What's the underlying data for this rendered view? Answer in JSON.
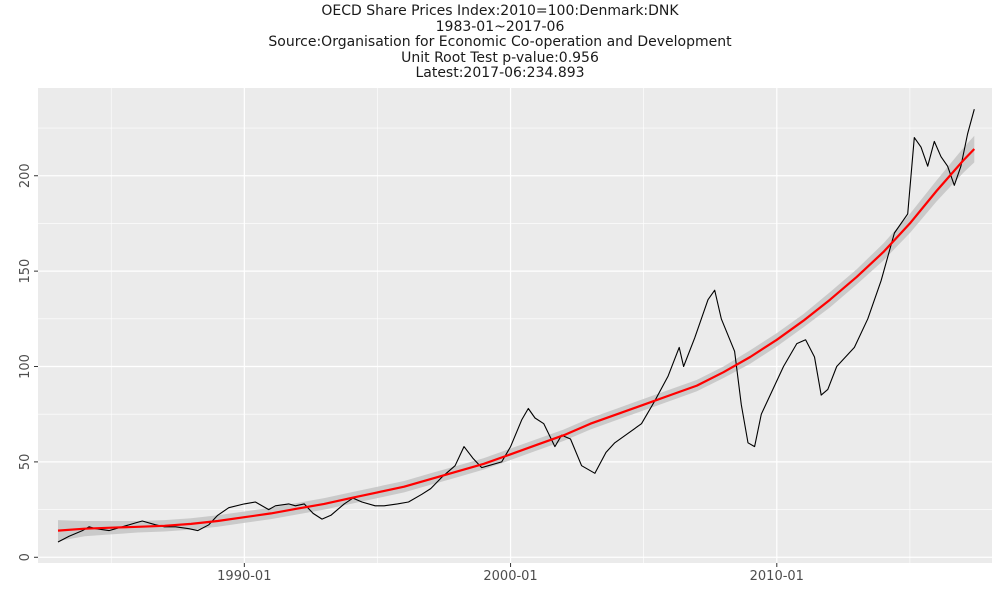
{
  "header": {
    "title": "OECD Share Prices Index:2010=100:Denmark:DNK",
    "period": "1983-01~2017-06",
    "source": "Source:Organisation for Economic Co-operation and Development",
    "unit_root": "Unit Root Test p-value:0.956",
    "latest": "Latest:2017-06:234.893"
  },
  "chart_data": {
    "type": "line",
    "title": "OECD Share Prices Index:2010=100:Denmark:DNK",
    "subtitle": "1983-01~2017-06",
    "xlabel": "",
    "ylabel": "",
    "x_range": [
      "1982-04",
      "2018-02"
    ],
    "ylim": [
      -3,
      246
    ],
    "grid": true,
    "x_ticks": [
      {
        "date": "1990-01",
        "label": "1990-01"
      },
      {
        "date": "2000-01",
        "label": "2000-01"
      },
      {
        "date": "2010-01",
        "label": "2010-01"
      }
    ],
    "y_ticks": [
      {
        "value": 0,
        "label": "0"
      },
      {
        "value": 50,
        "label": "50"
      },
      {
        "value": 100,
        "label": "100"
      },
      {
        "value": 150,
        "label": "150"
      },
      {
        "value": 200,
        "label": "200"
      }
    ],
    "colors": {
      "panel": "#ebebeb",
      "grid": "#ffffff",
      "series": "#000000",
      "trend": "#ff0000",
      "band": "#c4c4c4"
    },
    "series": [
      {
        "style": "observed",
        "points": [
          [
            "1983-01",
            8
          ],
          [
            "1983-06",
            11
          ],
          [
            "1983-12",
            14
          ],
          [
            "1984-03",
            16
          ],
          [
            "1984-06",
            15
          ],
          [
            "1984-12",
            14
          ],
          [
            "1985-06",
            16
          ],
          [
            "1985-12",
            18
          ],
          [
            "1986-03",
            19
          ],
          [
            "1986-09",
            17
          ],
          [
            "1987-01",
            16
          ],
          [
            "1987-06",
            16
          ],
          [
            "1987-12",
            15
          ],
          [
            "1988-04",
            14
          ],
          [
            "1988-09",
            17
          ],
          [
            "1989-01",
            22
          ],
          [
            "1989-06",
            26
          ],
          [
            "1990-01",
            28
          ],
          [
            "1990-06",
            29
          ],
          [
            "1990-12",
            25
          ],
          [
            "1991-03",
            27
          ],
          [
            "1991-09",
            28
          ],
          [
            "1991-12",
            27
          ],
          [
            "1992-04",
            28
          ],
          [
            "1992-08",
            23
          ],
          [
            "1992-12",
            20
          ],
          [
            "1993-04",
            22
          ],
          [
            "1993-10",
            28
          ],
          [
            "1994-02",
            31
          ],
          [
            "1994-06",
            29
          ],
          [
            "1994-12",
            27
          ],
          [
            "1995-04",
            27
          ],
          [
            "1995-10",
            28
          ],
          [
            "1996-03",
            29
          ],
          [
            "1996-09",
            33
          ],
          [
            "1997-01",
            36
          ],
          [
            "1997-06",
            42
          ],
          [
            "1997-12",
            48
          ],
          [
            "1998-04",
            58
          ],
          [
            "1998-08",
            52
          ],
          [
            "1998-12",
            47
          ],
          [
            "1999-03",
            48
          ],
          [
            "1999-09",
            50
          ],
          [
            "2000-01",
            58
          ],
          [
            "2000-06",
            72
          ],
          [
            "2000-09",
            78
          ],
          [
            "2000-12",
            73
          ],
          [
            "2001-04",
            70
          ],
          [
            "2001-09",
            58
          ],
          [
            "2001-12",
            64
          ],
          [
            "2002-04",
            62
          ],
          [
            "2002-09",
            48
          ],
          [
            "2003-03",
            44
          ],
          [
            "2003-08",
            55
          ],
          [
            "2003-12",
            60
          ],
          [
            "2004-06",
            65
          ],
          [
            "2004-12",
            70
          ],
          [
            "2005-06",
            82
          ],
          [
            "2005-12",
            95
          ],
          [
            "2006-05",
            110
          ],
          [
            "2006-07",
            100
          ],
          [
            "2006-12",
            115
          ],
          [
            "2007-06",
            135
          ],
          [
            "2007-09",
            140
          ],
          [
            "2007-12",
            125
          ],
          [
            "2008-06",
            108
          ],
          [
            "2008-09",
            80
          ],
          [
            "2008-12",
            60
          ],
          [
            "2009-03",
            58
          ],
          [
            "2009-06",
            75
          ],
          [
            "2009-12",
            90
          ],
          [
            "2010-04",
            100
          ],
          [
            "2010-10",
            112
          ],
          [
            "2011-02",
            114
          ],
          [
            "2011-06",
            105
          ],
          [
            "2011-09",
            85
          ],
          [
            "2011-12",
            88
          ],
          [
            "2012-04",
            100
          ],
          [
            "2012-12",
            110
          ],
          [
            "2013-06",
            125
          ],
          [
            "2013-12",
            145
          ],
          [
            "2014-06",
            170
          ],
          [
            "2014-12",
            180
          ],
          [
            "2015-03",
            220
          ],
          [
            "2015-06",
            215
          ],
          [
            "2015-09",
            205
          ],
          [
            "2015-12",
            218
          ],
          [
            "2016-03",
            210
          ],
          [
            "2016-06",
            205
          ],
          [
            "2016-09",
            195
          ],
          [
            "2016-12",
            205
          ],
          [
            "2017-03",
            222
          ],
          [
            "2017-06",
            234.893
          ]
        ]
      },
      {
        "style": "trend",
        "points": [
          [
            "1983-01",
            14
          ],
          [
            "1984-01",
            15
          ],
          [
            "1985-01",
            15.5
          ],
          [
            "1986-01",
            16
          ],
          [
            "1987-01",
            16.5
          ],
          [
            "1988-01",
            17.5
          ],
          [
            "1989-01",
            19
          ],
          [
            "1990-01",
            21
          ],
          [
            "1991-01",
            23
          ],
          [
            "1992-01",
            25.5
          ],
          [
            "1993-01",
            28
          ],
          [
            "1994-01",
            31
          ],
          [
            "1995-01",
            34
          ],
          [
            "1996-01",
            37
          ],
          [
            "1997-01",
            41
          ],
          [
            "1998-01",
            45
          ],
          [
            "1999-01",
            49
          ],
          [
            "2000-01",
            54
          ],
          [
            "2001-01",
            59
          ],
          [
            "2002-01",
            64
          ],
          [
            "2003-01",
            70
          ],
          [
            "2004-01",
            75
          ],
          [
            "2005-01",
            80
          ],
          [
            "2006-01",
            85
          ],
          [
            "2007-01",
            90
          ],
          [
            "2008-01",
            97
          ],
          [
            "2009-01",
            105
          ],
          [
            "2010-01",
            114
          ],
          [
            "2011-01",
            124
          ],
          [
            "2012-01",
            135
          ],
          [
            "2013-01",
            147
          ],
          [
            "2014-01",
            160
          ],
          [
            "2015-01",
            175
          ],
          [
            "2016-01",
            192
          ],
          [
            "2017-01",
            208
          ],
          [
            "2017-06",
            214
          ]
        ],
        "band": [
          5.5,
          4,
          3.5,
          3,
          3,
          3,
          3,
          3,
          3,
          3,
          3,
          3,
          3,
          3,
          3,
          3,
          3,
          3,
          3,
          3,
          3,
          3,
          3,
          3,
          3,
          3,
          3.5,
          3.5,
          3.5,
          4,
          4,
          4.5,
          5,
          5.5,
          6.5,
          7
        ]
      }
    ]
  }
}
